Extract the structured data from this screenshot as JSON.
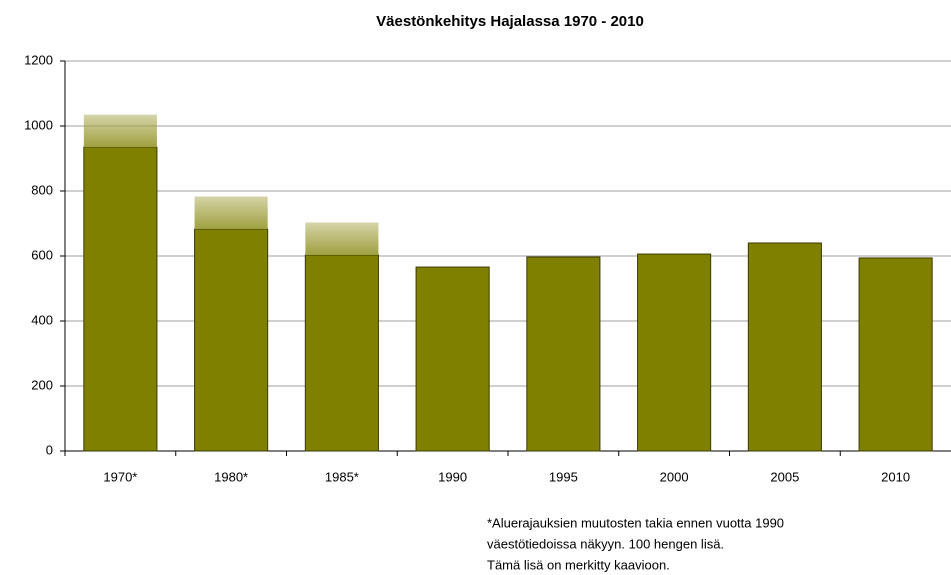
{
  "chart_data": {
    "type": "bar",
    "stacked": true,
    "title": "Väestönkehitys Hajalassa 1970 - 2010",
    "categories": [
      "1970*",
      "1980*",
      "1985*",
      "1990",
      "1995",
      "2000",
      "2005",
      "2010"
    ],
    "series": [
      {
        "color": "#808000",
        "values": [
          935,
          683,
          603,
          566,
          597,
          606,
          640,
          594
        ]
      },
      {
        "color": "#a0a040",
        "values": [
          100,
          100,
          100,
          null,
          null,
          null,
          null,
          null
        ]
      }
    ],
    "annotations": [
      "*Aluerajauksien  muutosten takia ennen vuotta 1990",
      "väestötiedoissa  näkyyn. 100 hengen lisä.",
      "Tämä lisä on merkitty kaavioon."
    ],
    "ylim": [
      0,
      1200
    ],
    "yticks": [
      0,
      200,
      400,
      600,
      800,
      1000,
      1200
    ],
    "grid": true
  }
}
